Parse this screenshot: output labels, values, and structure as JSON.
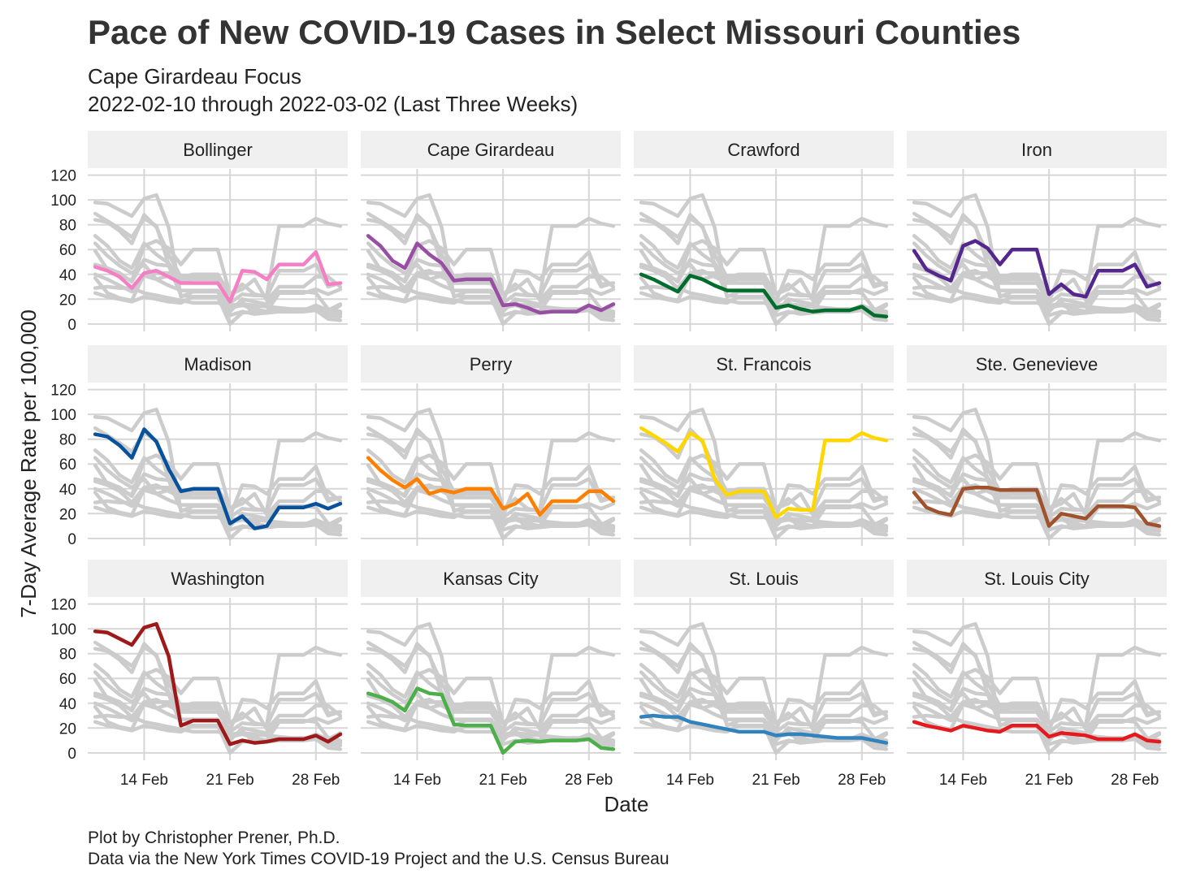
{
  "chart_data": {
    "type": "line",
    "title": "Pace of New COVID-19 Cases in Select Missouri Counties",
    "subtitle": [
      "Cape Girardeau Focus",
      "2022-02-10 through 2022-03-02 (Last Three Weeks)"
    ],
    "xlabel": "Date",
    "ylabel": "7-Day Average Rate per 100,000",
    "caption": [
      "Plot by Christopher Prener, Ph.D.",
      "Data via the New York Times COVID-19 Project and the U.S. Census Bureau"
    ],
    "x": [
      "2022-02-10",
      "2022-02-11",
      "2022-02-12",
      "2022-02-13",
      "2022-02-14",
      "2022-02-15",
      "2022-02-16",
      "2022-02-17",
      "2022-02-18",
      "2022-02-19",
      "2022-02-20",
      "2022-02-21",
      "2022-02-22",
      "2022-02-23",
      "2022-02-24",
      "2022-02-25",
      "2022-02-26",
      "2022-02-27",
      "2022-02-28",
      "2022-03-01",
      "2022-03-02"
    ],
    "x_ticks": [
      {
        "value": "2022-02-14",
        "label": "14 Feb"
      },
      {
        "value": "2022-02-21",
        "label": "21 Feb"
      },
      {
        "value": "2022-02-28",
        "label": "28 Feb"
      }
    ],
    "ylim": [
      0,
      120
    ],
    "y_ticks": [
      0,
      20,
      40,
      60,
      80,
      100,
      120
    ],
    "background_color": "#cccccc",
    "facets": "one panel per county; all counties drawn in grey behind the highlighted county",
    "series": [
      {
        "name": "Bollinger",
        "color": "#f57fc3",
        "values": [
          46,
          43,
          38,
          29,
          41,
          43,
          38,
          33,
          33,
          33,
          33,
          18,
          43,
          42,
          36,
          48,
          48,
          48,
          58,
          32,
          33
        ]
      },
      {
        "name": "Cape Girardeau",
        "color": "#984ea3",
        "values": [
          71,
          63,
          51,
          45,
          65,
          56,
          49,
          35,
          36,
          36,
          36,
          15,
          16,
          13,
          9,
          10,
          10,
          10,
          15,
          11,
          16
        ]
      },
      {
        "name": "Crawford",
        "color": "#006d2c",
        "values": [
          40,
          36,
          31,
          26,
          39,
          36,
          31,
          27,
          27,
          27,
          27,
          13,
          15,
          12,
          10,
          11,
          11,
          11,
          14,
          7,
          6
        ]
      },
      {
        "name": "Iron",
        "color": "#54278f",
        "values": [
          59,
          44,
          39,
          35,
          63,
          67,
          61,
          48,
          60,
          60,
          60,
          24,
          32,
          24,
          22,
          43,
          43,
          43,
          48,
          30,
          33
        ]
      },
      {
        "name": "Madison",
        "color": "#08519c",
        "values": [
          84,
          82,
          75,
          65,
          88,
          78,
          56,
          38,
          40,
          40,
          40,
          12,
          18,
          8,
          10,
          25,
          25,
          25,
          28,
          24,
          28
        ]
      },
      {
        "name": "Perry",
        "color": "#ff7f00",
        "values": [
          65,
          55,
          47,
          41,
          48,
          36,
          39,
          37,
          40,
          40,
          40,
          24,
          28,
          36,
          19,
          30,
          30,
          30,
          38,
          38,
          30
        ]
      },
      {
        "name": "St. Francois",
        "color": "#ffd700",
        "values": [
          89,
          83,
          77,
          70,
          85,
          79,
          48,
          35,
          38,
          38,
          38,
          17,
          24,
          23,
          23,
          79,
          79,
          79,
          85,
          81,
          79
        ]
      },
      {
        "name": "Ste. Genevieve",
        "color": "#a0522d",
        "values": [
          37,
          25,
          21,
          19,
          40,
          41,
          41,
          39,
          39,
          39,
          39,
          10,
          20,
          18,
          16,
          26,
          26,
          26,
          25,
          12,
          10
        ]
      },
      {
        "name": "Washington",
        "color": "#9e1a1a",
        "values": [
          98,
          97,
          92,
          87,
          101,
          104,
          78,
          22,
          26,
          26,
          26,
          7,
          10,
          8,
          9,
          11,
          11,
          11,
          14,
          9,
          15
        ]
      },
      {
        "name": "Kansas City",
        "color": "#4daf4a",
        "values": [
          48,
          45,
          41,
          34,
          52,
          48,
          47,
          23,
          22,
          22,
          22,
          0,
          9,
          10,
          9,
          10,
          10,
          10,
          11,
          4,
          3
        ]
      },
      {
        "name": "St. Louis",
        "color": "#3182bd",
        "values": [
          29,
          30,
          29,
          29,
          25,
          23,
          21,
          19,
          17,
          17,
          17,
          14,
          15,
          15,
          14,
          13,
          12,
          12,
          12,
          10,
          8
        ]
      },
      {
        "name": "St. Louis City",
        "color": "#e41a1c",
        "values": [
          25,
          22,
          20,
          18,
          22,
          20,
          18,
          17,
          22,
          22,
          22,
          13,
          16,
          15,
          14,
          11,
          11,
          11,
          15,
          10,
          9
        ]
      }
    ]
  }
}
